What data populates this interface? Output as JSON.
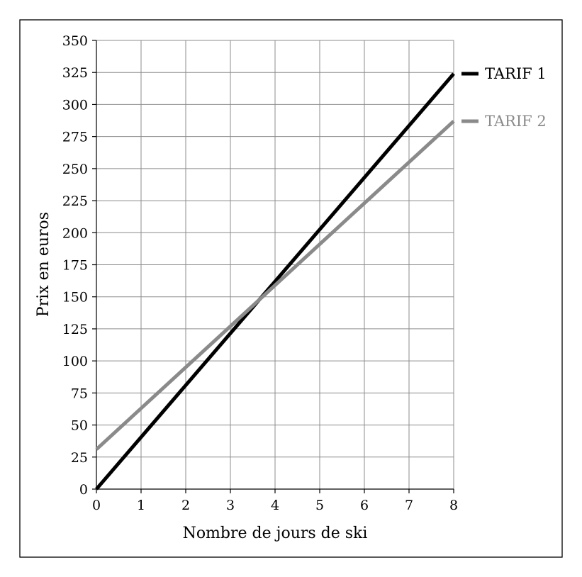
{
  "chart_data": {
    "type": "line",
    "xlabel": "Nombre de jours de ski",
    "ylabel": "Prix en euros",
    "xlim": [
      0,
      8
    ],
    "ylim": [
      0,
      350
    ],
    "x_ticks": [
      "0",
      "1",
      "2",
      "3",
      "4",
      "5",
      "6",
      "7",
      "8"
    ],
    "y_ticks": [
      "0",
      "25",
      "50",
      "75",
      "100",
      "125",
      "150",
      "175",
      "200",
      "225",
      "250",
      "275",
      "300",
      "325",
      "350"
    ],
    "grid": true,
    "legend_position": "right",
    "series": [
      {
        "name": "TARIF 1",
        "color": "#000000",
        "x": [
          0,
          8
        ],
        "y": [
          0,
          324
        ]
      },
      {
        "name": "TARIF 2",
        "color": "#8a8a8a",
        "x": [
          0,
          8
        ],
        "y": [
          31,
          287
        ]
      }
    ]
  }
}
